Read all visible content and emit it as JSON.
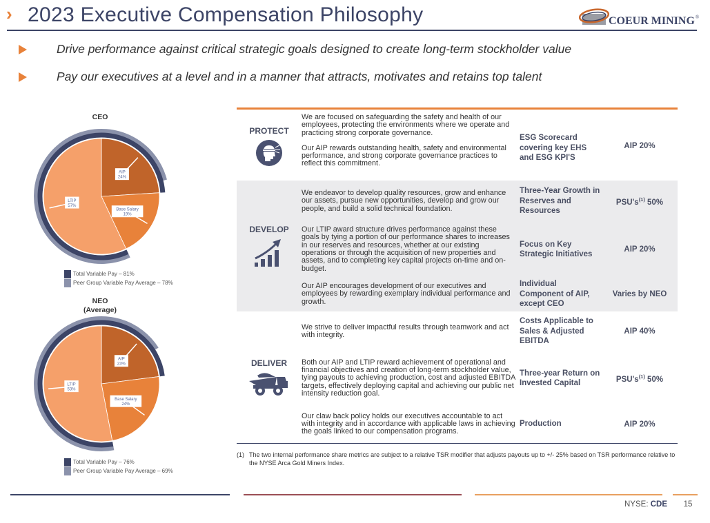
{
  "header": {
    "title": "2023 Executive Compensation Philosophy",
    "logo_text": "COEUR MINING",
    "logo_mark": "®"
  },
  "bullets": [
    "Drive performance against critical strategic goals designed to create long-term stockholder value",
    "Pay our executives at a level and in a manner that attracts, motivates and retains top talent"
  ],
  "colors": {
    "navy": "#3c4466",
    "orange": "#e8823a",
    "aip": "#c0642a",
    "base_salary": "#e8823a",
    "ltip": "#f5a06a",
    "total_variable_ring": "#3c4466",
    "peer_ring": "#8b92ab",
    "maroon": "#9b4f55"
  },
  "chart_data": [
    {
      "type": "pie",
      "title": "CEO",
      "subtitle": "",
      "slices": [
        {
          "label": "AIP",
          "value": 24,
          "display": "24%"
        },
        {
          "label": "Base Salary",
          "value": 19,
          "display": "19%"
        },
        {
          "label": "LTIP",
          "value": 57,
          "display": "57%"
        }
      ],
      "rings": [
        {
          "name": "Total Variable Pay",
          "value": 81,
          "legend": "Total Variable Pay – 81%"
        },
        {
          "name": "Peer Group Variable Pay Average",
          "value": 78,
          "legend": "Peer Group Variable Pay Average – 78%"
        }
      ]
    },
    {
      "type": "pie",
      "title": "NEO",
      "subtitle": "(Average)",
      "slices": [
        {
          "label": "AIP",
          "value": 23,
          "display": "23%"
        },
        {
          "label": "Base Salary",
          "value": 24,
          "display": "24%"
        },
        {
          "label": "LTIP",
          "value": 53,
          "display": "53%"
        }
      ],
      "rings": [
        {
          "name": "Total Variable Pay",
          "value": 76,
          "legend": "Total Variable Pay –  76%"
        },
        {
          "name": "Peer Group Variable Pay Average",
          "value": 69,
          "legend": "Peer Group Variable Pay Average – 69%"
        }
      ]
    }
  ],
  "table": {
    "sections": [
      {
        "label": "PROTECT",
        "icon": "safety-helmet-icon",
        "rows": [
          {
            "desc": [
              "We are focused on safeguarding the safety and health of our employees, protecting the environments where we operate and practicing strong corporate governance.",
              "Our AIP rewards outstanding health, safety and environmental performance, and strong corporate governance practices to reflect this commitment."
            ],
            "metric": "ESG Scorecard covering key EHS and ESG KPI'S",
            "weight": {
              "pre": "AIP 20%",
              "sup": "",
              "post": ""
            }
          }
        ]
      },
      {
        "label": "DEVELOP",
        "icon": "growth-chart-icon",
        "rows": [
          {
            "desc": [
              "We endeavor to develop quality resources, grow and enhance our assets, pursue new opportunities, develop and grow our people, and build a solid technical foundation."
            ],
            "metric": "Three-Year Growth in Reserves and Resources",
            "weight": {
              "pre": "PSU's",
              "sup": "(1)",
              "post": " 50%"
            }
          },
          {
            "desc": [
              "Our LTIP award structure drives performance against these goals by tying a portion of our performance shares to increases in our reserves and resources, whether at our existing operations or through the acquisition of new properties and assets, and to completing key capital projects on-time and on-budget."
            ],
            "metric": "Focus on Key Strategic Initiatives",
            "weight": {
              "pre": "AIP 20%",
              "sup": "",
              "post": ""
            }
          },
          {
            "desc": [
              "Our AIP encourages development of our executives and employees by rewarding exemplary individual performance and growth."
            ],
            "metric": "Individual Component of AIP, except CEO",
            "weight": {
              "pre": "Varies by NEO",
              "sup": "",
              "post": ""
            }
          }
        ]
      },
      {
        "label": "DELIVER",
        "icon": "haul-truck-icon",
        "rows": [
          {
            "desc": [
              "We strive to deliver impactful results through teamwork and act with integrity."
            ],
            "metric": "Costs Applicable to Sales & Adjusted EBITDA",
            "weight": {
              "pre": "AIP 40%",
              "sup": "",
              "post": ""
            }
          },
          {
            "desc": [
              "Both our AIP and LTIP reward achievement of operational and financial objectives and creation of long-term stockholder value, tying payouts to achieving production, cost and adjusted EBITDA targets, effectively deploying capital and achieving our public net intensity reduction goal."
            ],
            "metric": "Three-year Return on Invested Capital",
            "weight": {
              "pre": "PSU's",
              "sup": "(1)",
              "post": " 50%"
            }
          },
          {
            "desc": [
              "Our claw back policy holds our executives accountable to act with integrity and in accordance with applicable laws in achieving the goals linked to our compensation programs."
            ],
            "metric": "Production",
            "weight": {
              "pre": "AIP 20%",
              "sup": "",
              "post": ""
            }
          }
        ]
      }
    ]
  },
  "footnote": {
    "num": "(1)",
    "text": "The two internal performance share metrics are subject to a relative TSR modifier that adjusts payouts up to +/- 25% based on TSR performance relative to the NYSE Arca Gold Miners Index."
  },
  "footer": {
    "exchange": "NYSE: ",
    "ticker": "CDE",
    "page": "15"
  }
}
